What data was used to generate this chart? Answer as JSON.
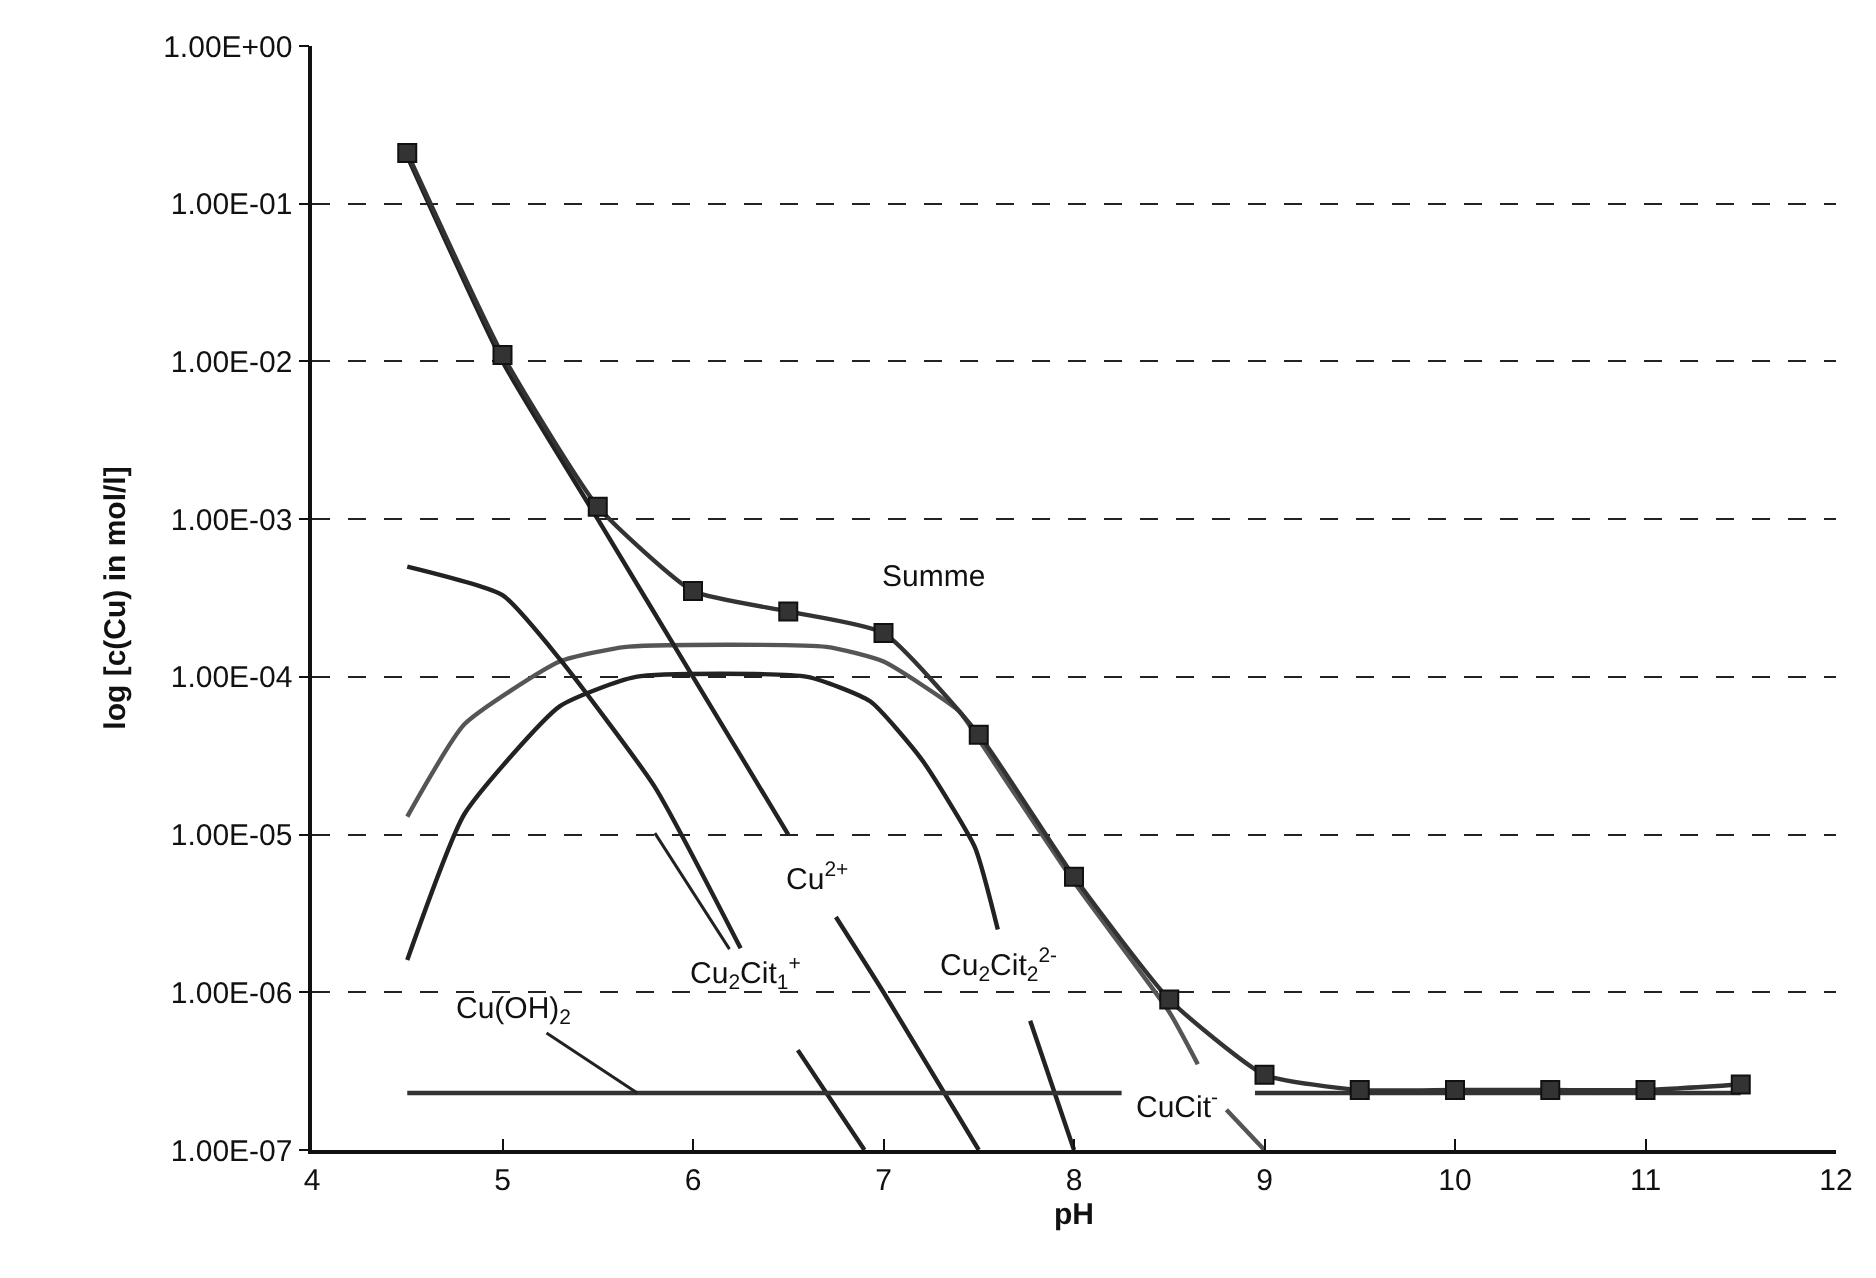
{
  "chart_data": {
    "type": "line",
    "xlabel": "pH",
    "ylabel": "log [c(Cu) in mol/l]",
    "log": "y",
    "grid": "y",
    "legend": false,
    "xlim": [
      4,
      12
    ],
    "xticks": [
      4,
      5,
      6,
      7,
      8,
      9,
      10,
      11,
      12
    ],
    "ylim": [
      1e-07,
      1
    ],
    "yticks": [
      {
        "value": 1e-07,
        "label": "1.00E-07"
      },
      {
        "value": 1e-06,
        "label": "1.00E-06"
      },
      {
        "value": 1e-05,
        "label": "1.00E-05"
      },
      {
        "value": 0.0001,
        "label": "1.00E-04"
      },
      {
        "value": 0.001,
        "label": "1.00E-03"
      },
      {
        "value": 0.01,
        "label": "1.00E-02"
      },
      {
        "value": 0.1,
        "label": "1.00E-01"
      },
      {
        "value": 1,
        "label": "1.00E+00"
      }
    ],
    "series": [
      {
        "name": "CuCit$^{-}$",
        "color": "#555555",
        "x": [
          4.5,
          4.8,
          5.3,
          5.65,
          6.7,
          7.0,
          7.4,
          7.5,
          8.0,
          8.5,
          8.65,
          8.72,
          8.8,
          9.0
        ],
        "values": [
          1.3e-05,
          5e-05,
          0.000125,
          0.000155,
          0.000155,
          0.000125,
          6e-05,
          4e-05,
          5e-06,
          7.5e-07,
          3.5e-07,
          null,
          1.8e-07,
          1e-07
        ]
      },
      {
        "name": "Cu$_{2}$Cit$_{2}$$^{2-}$",
        "color": "#222222",
        "x": [
          4.5,
          4.8,
          5.3,
          5.7,
          6.6,
          6.93,
          7.2,
          7.48,
          7.6,
          7.7,
          7.77,
          8.0
        ],
        "values": [
          1.6e-06,
          1.35e-05,
          6.5e-05,
          0.0001,
          0.0001,
          7e-05,
          3e-05,
          8.3e-06,
          2.5e-06,
          null,
          6.6e-07,
          1e-07
        ]
      },
      {
        "name": "Cu$_{2}$Cit$_{1}$$^{+}$",
        "color": "#222222",
        "x": [
          4.5,
          5.0,
          5.3,
          5.8,
          6.25,
          6.4,
          6.55,
          6.9
        ],
        "values": [
          0.0005,
          0.00033,
          0.00013,
          2e-05,
          1.9e-06,
          null,
          4.3e-07,
          1e-07
        ]
      },
      {
        "name": "Cu$^{2+}$",
        "color": "#222222",
        "x": [
          4.5,
          5.0,
          5.5,
          6.0,
          6.5,
          6.6,
          6.75,
          7.0,
          7.5
        ],
        "values": [
          0.2,
          0.01,
          0.001,
          0.0001,
          1e-05,
          null,
          3e-06,
          1e-06,
          1e-07
        ]
      },
      {
        "name": "Cu(OH)$_{2}$",
        "color": "#333333",
        "x": [
          4.5,
          8.25,
          8.6,
          8.95,
          11.5
        ],
        "values": [
          2.3e-07,
          2.3e-07,
          null,
          2.3e-07,
          2.3e-07
        ]
      },
      {
        "name": "Summe",
        "color": "#333333",
        "marker": "square",
        "x": [
          4.5,
          5.0,
          5.5,
          6.0,
          6.5,
          7.0,
          7.5,
          8.0,
          8.5,
          9.0,
          9.5,
          10.0,
          10.5,
          11.0,
          11.5
        ],
        "values": [
          0.21,
          0.011,
          0.0012,
          0.00035,
          0.00026,
          0.00019,
          4.3e-05,
          5.4e-06,
          9e-07,
          3e-07,
          2.4e-07,
          2.4e-07,
          2.4e-07,
          2.4e-07,
          2.6e-07
        ]
      }
    ]
  }
}
